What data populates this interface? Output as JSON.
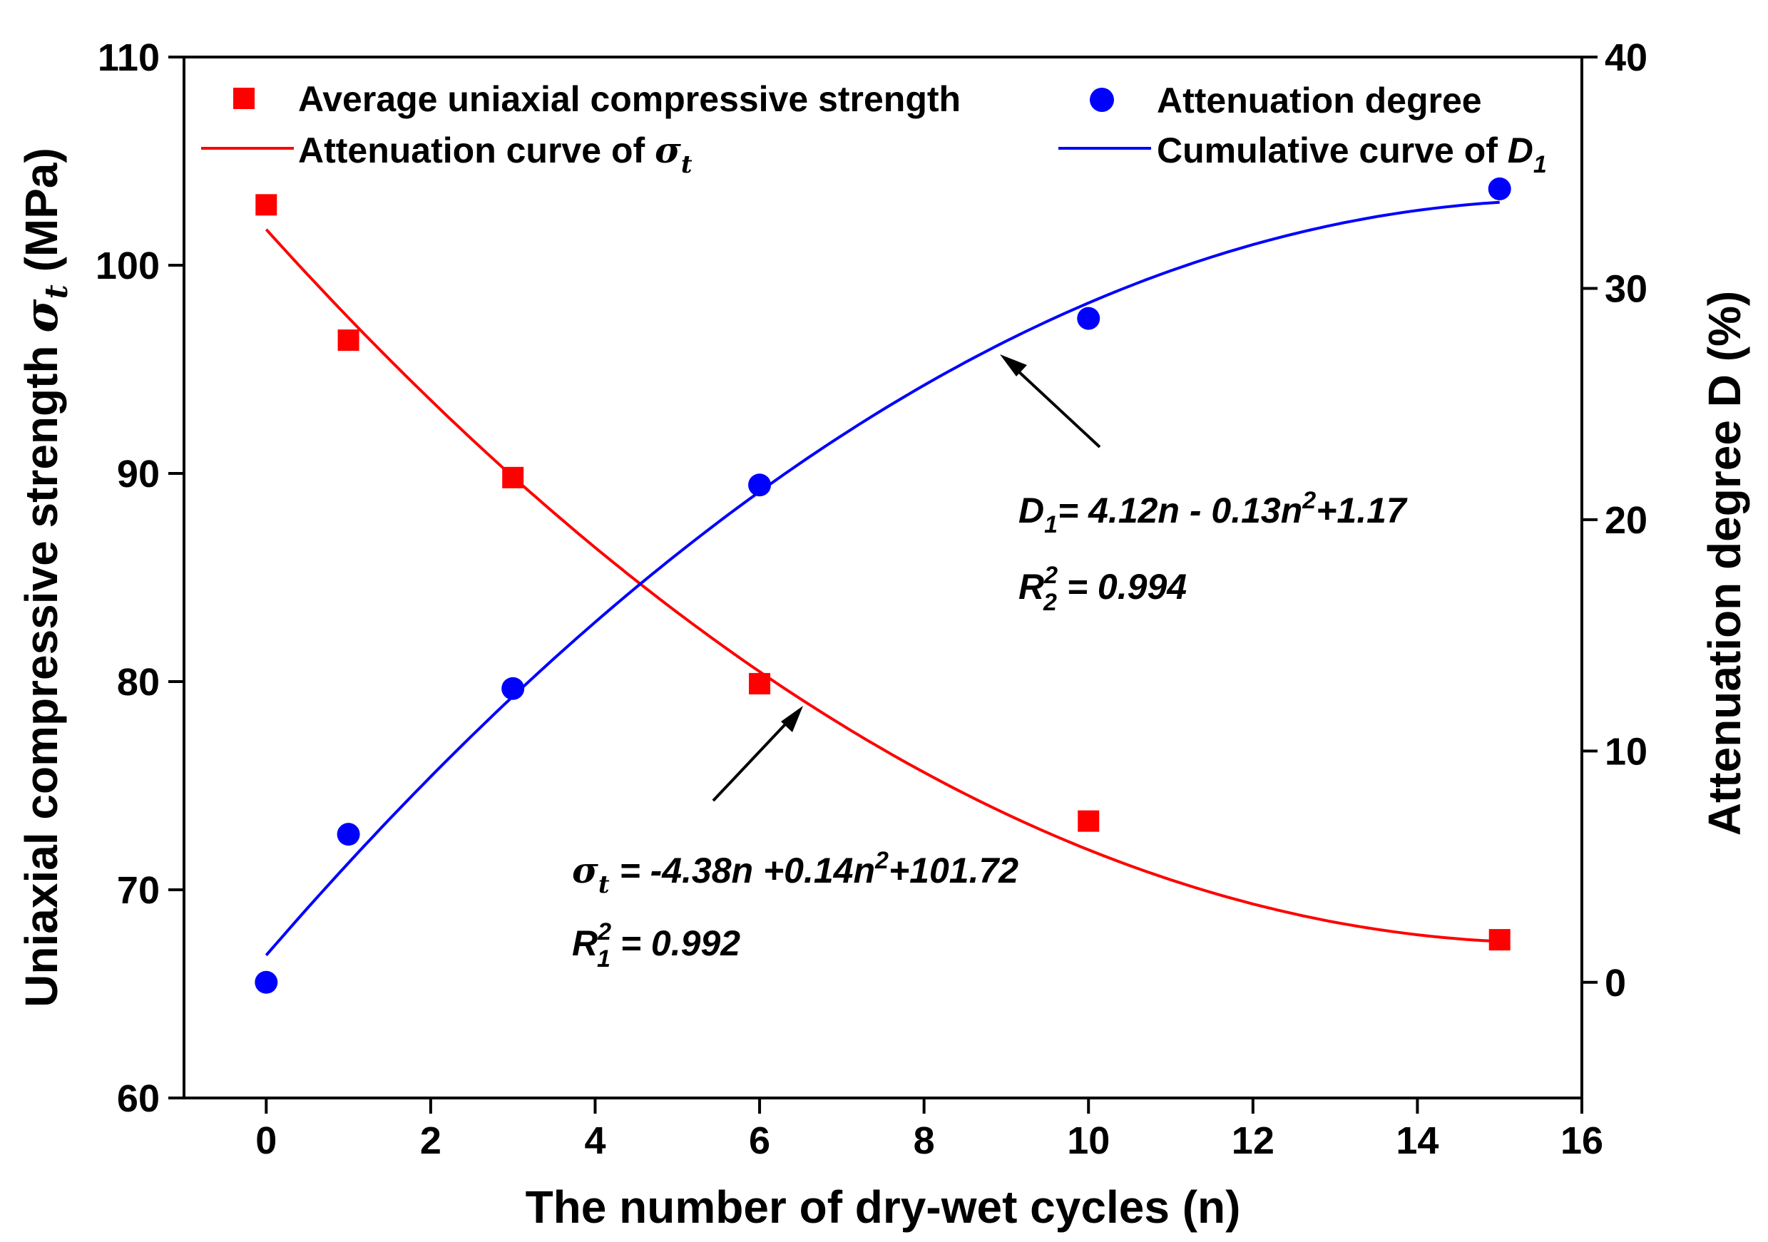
{
  "chart_data": {
    "type": "scatter",
    "x_axis": {
      "label": "The number of dry-wet cycles (n)",
      "range": [
        -1,
        16
      ],
      "ticks": [
        0,
        2,
        4,
        6,
        8,
        10,
        12,
        14,
        16
      ]
    },
    "y_left": {
      "label_prefix": "Uniaxial compressive strength ",
      "label_symbol": "σ",
      "label_subscript": "t",
      "label_suffix": " (MPa)",
      "range": [
        60,
        110
      ],
      "ticks": [
        60,
        70,
        80,
        90,
        100,
        110
      ]
    },
    "y_right": {
      "label": "Attenuation degree D (%)",
      "range": [
        -5,
        40
      ],
      "ticks": [
        0,
        10,
        20,
        30,
        40
      ]
    },
    "series": [
      {
        "name": "Average uniaxial compressive strength",
        "kind": "scatter",
        "marker": "square",
        "color": "#ff0000",
        "axis": "left",
        "x": [
          0,
          1,
          3,
          6,
          10,
          15
        ],
        "y": [
          102.9,
          96.4,
          89.8,
          79.9,
          73.3,
          67.6
        ]
      },
      {
        "name": "Attenuation degree",
        "kind": "scatter",
        "marker": "circle",
        "color": "#0000ff",
        "axis": "right",
        "x": [
          0,
          1,
          3,
          6,
          10,
          15
        ],
        "y": [
          0,
          6.4,
          12.7,
          21.5,
          28.7,
          34.3
        ]
      },
      {
        "name_prefix": "Attenuation curve of ",
        "name_symbol": "σ",
        "name_subscript": "t",
        "kind": "curve",
        "color": "#ff0000",
        "axis": "left",
        "coefficients": {
          "c0": 101.72,
          "c1": -4.38,
          "c2": 0.14
        },
        "x_range": [
          0,
          15
        ]
      },
      {
        "name_prefix": "Cumulative curve of ",
        "name_symbol": "D",
        "name_subscript": "1",
        "kind": "curve",
        "color": "#0000ff",
        "axis": "right",
        "coefficients": {
          "c0": 1.17,
          "c1": 4.12,
          "c2": -0.13
        },
        "x_range": [
          0,
          15
        ]
      }
    ],
    "annotations": {
      "d_equation": {
        "symbol": "D",
        "subscript": "1",
        "text": "= 4.12n - 0.13n",
        "superscript": "2",
        "tail": "+1.17"
      },
      "d_r2": {
        "symbol": "R",
        "superscript": "2",
        "subscript": "2",
        "text": " = 0.994"
      },
      "s_equation": {
        "symbol": "σ",
        "subscript": "t",
        "text": " = -4.38n +0.14n",
        "superscript": "2",
        "tail": "+101.72"
      },
      "s_r2": {
        "symbol": "R",
        "superscript": "2",
        "subscript": "1",
        "text": " = 0.992"
      }
    },
    "legend_position": "top"
  }
}
